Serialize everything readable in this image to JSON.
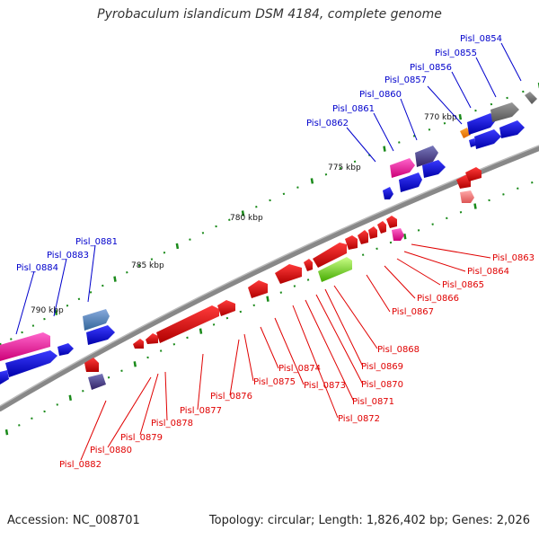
{
  "title": "Pyrobaculum islandicum DSM 4184, complete genome",
  "footer": {
    "accession": "Accession: NC_008701",
    "stats": "Topology: circular; Length: 1,826,402 bp; Genes: 2,026"
  },
  "kbp_labels": [
    "770 kbp",
    "775 kbp",
    "780 kbp",
    "785 kbp",
    "790 kbp"
  ],
  "genes_forward": [
    "Pisl_0854",
    "Pisl_0855",
    "Pisl_0856",
    "Pisl_0857",
    "Pisl_0860",
    "Pisl_0861",
    "Pisl_0862",
    "Pisl_0881",
    "Pisl_0883",
    "Pisl_0884"
  ],
  "genes_reverse": [
    "Pisl_0863",
    "Pisl_0864",
    "Pisl_0865",
    "Pisl_0866",
    "Pisl_0867",
    "Pisl_0868",
    "Pisl_0869",
    "Pisl_0870",
    "Pisl_0871",
    "Pisl_0872",
    "Pisl_0873",
    "Pisl_0874",
    "Pisl_0875",
    "Pisl_0876",
    "Pisl_0877",
    "Pisl_0878",
    "Pisl_0879",
    "Pisl_0880",
    "Pisl_0882"
  ],
  "colors": {
    "forward_label": "#0000cc",
    "reverse_label": "#e00000",
    "forward_gene": "#0000ee",
    "reverse_gene": "#ee0000",
    "backbone": "#888888",
    "tick": "#1a8a1a"
  }
}
